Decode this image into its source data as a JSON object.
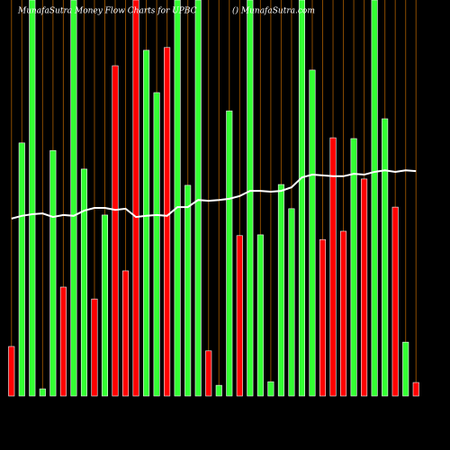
{
  "chart_data": {
    "type": "bar",
    "title": "MunafaSutra  Money Flow  Charts for UPBC",
    "subtitle": "() MunafaSutra.com",
    "values": [
      12.5,
      63.9,
      100,
      1.8,
      62.0,
      27.5,
      100,
      57.3,
      24.5,
      45.7,
      83.4,
      31.6,
      100,
      87.3,
      76.6,
      88.0,
      100,
      53.2,
      100,
      11.4,
      2.7,
      72.0,
      40.5,
      100,
      40.7,
      3.6,
      53.4,
      47.3,
      100,
      82.3,
      39.5,
      65.2,
      41.6,
      65.0,
      54.8,
      100,
      70.0,
      47.7,
      13.6,
      3.4
    ],
    "bar_colors": [
      "#ff0000",
      "#33ff33",
      "#33ff33",
      "#33ff33",
      "#33ff33",
      "#ff0000",
      "#33ff33",
      "#33ff33",
      "#ff0000",
      "#33ff33",
      "#ff0000",
      "#ff0000",
      "#ff0000",
      "#33ff33",
      "#33ff33",
      "#ff0000",
      "#33ff33",
      "#33ff33",
      "#33ff33",
      "#ff0000",
      "#33ff33",
      "#33ff33",
      "#ff0000",
      "#33ff33",
      "#33ff33",
      "#33ff33",
      "#33ff33",
      "#33ff33",
      "#33ff33",
      "#33ff33",
      "#ff0000",
      "#ff0000",
      "#ff0000",
      "#33ff33",
      "#ff0000",
      "#33ff33",
      "#33ff33",
      "#ff0000",
      "#33ff33",
      "#ff0000"
    ],
    "line": {
      "color": "#ffffff",
      "values": [
        44.8,
        45.5,
        45.9,
        46.1,
        45.2,
        45.7,
        45.5,
        46.8,
        47.5,
        47.5,
        47.0,
        47.3,
        45.2,
        45.5,
        45.7,
        45.5,
        47.7,
        47.7,
        49.5,
        49.3,
        49.5,
        49.8,
        50.5,
        51.8,
        51.8,
        51.6,
        51.8,
        52.7,
        55.2,
        55.9,
        55.7,
        55.5,
        55.5,
        56.1,
        55.9,
        56.6,
        57.0,
        56.6,
        57.0,
        56.8
      ]
    },
    "ylim": [
      0,
      100
    ]
  }
}
